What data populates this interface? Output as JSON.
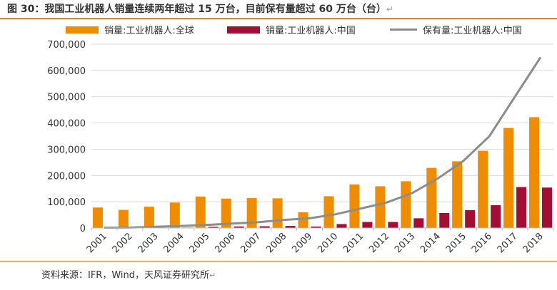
{
  "header": {
    "title": "图 30：我国工业机器人销量连续两年超过 15 万台，目前保有量超过 60 万台（台）",
    "return_mark": "↵"
  },
  "footer": {
    "source": "资料来源：IFR，Wind，天风证券研究所",
    "return_mark": "↵"
  },
  "colors": {
    "accent": "#e8811a",
    "bar_global": "#f08c00",
    "bar_china": "#a50e33",
    "line_stock": "#8c8c8c"
  },
  "chart_data": {
    "type": "bar",
    "categories": [
      "2001",
      "2002",
      "2003",
      "2004",
      "2005",
      "2006",
      "2007",
      "2008",
      "2009",
      "2010",
      "2011",
      "2012",
      "2013",
      "2014",
      "2015",
      "2016",
      "2017",
      "2018"
    ],
    "series": [
      {
        "name": "销量:工业机器人:全球",
        "type": "bar",
        "color": "#f08c00",
        "values": [
          78000,
          69000,
          81000,
          97000,
          120000,
          112000,
          114000,
          113000,
          60000,
          121000,
          166000,
          159000,
          178000,
          229000,
          254000,
          294000,
          381000,
          422000
        ]
      },
      {
        "name": "销量:工业机器人:中国",
        "type": "bar",
        "color": "#a50e33",
        "values": [
          500,
          600,
          1400,
          1700,
          4500,
          5800,
          6600,
          7900,
          5500,
          15000,
          23000,
          23000,
          37000,
          57000,
          68000,
          87000,
          156000,
          154000
        ]
      },
      {
        "name": "保有量:工业机器人:中国",
        "type": "line",
        "color": "#8c8c8c",
        "values": [
          1000,
          1500,
          5000,
          8000,
          12000,
          17000,
          22000,
          31000,
          37000,
          52000,
          74000,
          97000,
          133000,
          189000,
          256000,
          349000,
          500000,
          650000
        ]
      }
    ],
    "ylim": [
      0,
      700000
    ],
    "yticks": [
      0,
      100000,
      200000,
      300000,
      400000,
      500000,
      600000,
      700000
    ],
    "ytick_labels": [
      "0",
      "100,000",
      "200,000",
      "300,000",
      "400,000",
      "500,000",
      "600,000",
      "700,000"
    ],
    "xlabel": "",
    "ylabel": "",
    "grid": true,
    "legend": "top"
  }
}
